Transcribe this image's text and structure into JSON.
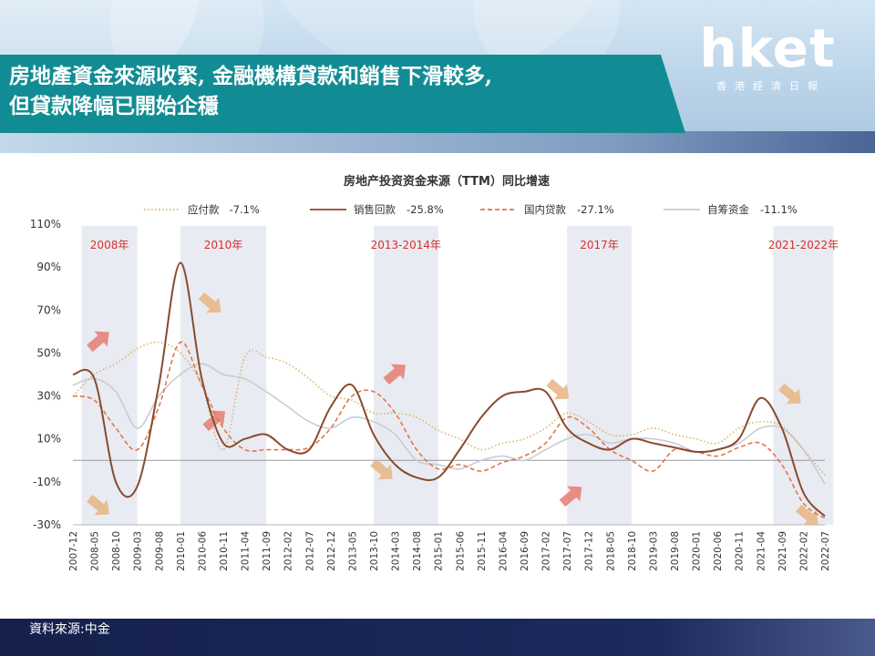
{
  "headline": {
    "line1": "房地產資金來源收緊, 金融機構貸款和銷售下滑較多,",
    "line2": "但貸款降幅已開始企穩"
  },
  "logo": {
    "brand": "hket",
    "sub": "香港經濟日報"
  },
  "source": "資料來源:中金",
  "chart_data": {
    "type": "line",
    "title": "房地产投资资金来源（TTM）同比增速",
    "ylim": [
      -30,
      110
    ],
    "y_ticks": [
      "110%",
      "90%",
      "70%",
      "50%",
      "30%",
      "10%",
      "-10%",
      "-30%"
    ],
    "x": [
      "2007-12",
      "2008-05",
      "2008-10",
      "2009-03",
      "2009-08",
      "2010-01",
      "2010-06",
      "2010-11",
      "2011-04",
      "2011-09",
      "2012-02",
      "2012-07",
      "2012-12",
      "2013-05",
      "2013-10",
      "2014-03",
      "2014-08",
      "2015-01",
      "2015-06",
      "2015-11",
      "2016-04",
      "2016-09",
      "2017-02",
      "2017-07",
      "2017-12",
      "2018-05",
      "2018-10",
      "2019-03",
      "2019-08",
      "2020-01",
      "2020-06",
      "2020-11",
      "2021-04",
      "2021-09",
      "2022-02",
      "2022-07"
    ],
    "grid": false,
    "legend_position": "top",
    "shaded_periods": [
      {
        "label": "2008年",
        "start": "2008-02",
        "end": "2009-03"
      },
      {
        "label": "2010年",
        "start": "2010-01",
        "end": "2011-09"
      },
      {
        "label": "2013-2014年",
        "start": "2013-10",
        "end": "2015-01"
      },
      {
        "label": "2017年",
        "start": "2017-07",
        "end": "2018-10"
      },
      {
        "label": "2021-2022年",
        "start": "2021-07",
        "end": "2022-09"
      }
    ],
    "series": [
      {
        "name": "应付款",
        "legend_value": "-7.1%",
        "color": "#d9b466",
        "style": "dotted",
        "values": [
          30,
          40,
          45,
          52,
          55,
          50,
          35,
          5,
          48,
          48,
          45,
          38,
          30,
          28,
          22,
          22,
          20,
          14,
          10,
          5,
          8,
          10,
          15,
          22,
          18,
          12,
          12,
          15,
          12,
          10,
          8,
          15,
          18,
          16,
          5,
          -7
        ]
      },
      {
        "name": "销售回款",
        "legend_value": "-25.8%",
        "color": "#8a4a2e",
        "style": "solid",
        "values": [
          40,
          38,
          -10,
          -12,
          35,
          92,
          38,
          8,
          10,
          12,
          5,
          5,
          25,
          35,
          12,
          -2,
          -8,
          -8,
          5,
          20,
          30,
          32,
          32,
          15,
          8,
          5,
          10,
          8,
          6,
          4,
          5,
          10,
          29,
          15,
          -15,
          -26
        ]
      },
      {
        "name": "国内贷款",
        "legend_value": "-27.1%",
        "color": "#e07848",
        "style": "dashed",
        "values": [
          30,
          28,
          15,
          5,
          25,
          55,
          35,
          15,
          5,
          5,
          5,
          6,
          15,
          30,
          32,
          22,
          5,
          -4,
          -2,
          -5,
          -1,
          2,
          8,
          20,
          15,
          5,
          0,
          -5,
          5,
          4,
          2,
          6,
          8,
          -2,
          -20,
          -27
        ]
      },
      {
        "name": "自筹资金",
        "legend_value": "-11.1%",
        "color": "#c8ccd6",
        "style": "solid",
        "values": [
          35,
          38,
          32,
          15,
          30,
          40,
          45,
          40,
          38,
          32,
          25,
          18,
          15,
          20,
          18,
          12,
          0,
          -2,
          -4,
          0,
          2,
          0,
          5,
          10,
          12,
          8,
          10,
          10,
          8,
          4,
          5,
          8,
          15,
          15,
          5,
          -11
        ]
      }
    ],
    "annotations": {
      "arrows": [
        {
          "direction": "up",
          "x": "2008-06"
        },
        {
          "direction": "down",
          "x": "2008-06"
        },
        {
          "direction": "down",
          "x": "2010-08"
        },
        {
          "direction": "up",
          "x": "2010-09"
        },
        {
          "direction": "up",
          "x": "2014-03"
        },
        {
          "direction": "down",
          "x": "2013-12"
        },
        {
          "direction": "down",
          "x": "2017-05"
        },
        {
          "direction": "up",
          "x": "2017-08"
        },
        {
          "direction": "down",
          "x": "2022-03"
        },
        {
          "direction": "down",
          "x": "2021-11"
        }
      ]
    }
  }
}
